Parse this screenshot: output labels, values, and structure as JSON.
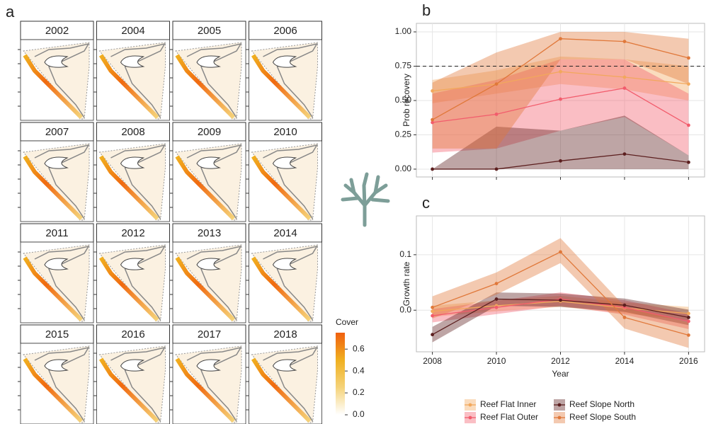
{
  "chart_data": [
    {
      "type": "map-grid",
      "panel_label": "a",
      "facets": [
        "2002",
        "2004",
        "2005",
        "2006",
        "2007",
        "2008",
        "2009",
        "2010",
        "2011",
        "2012",
        "2013",
        "2014",
        "2015",
        "2016",
        "2017",
        "2018"
      ],
      "legend_title": "Cover",
      "clim": [
        0,
        0.75
      ],
      "cticks": [
        {
          "value": 0,
          "label": "0.0"
        },
        {
          "value": 0.2,
          "label": "0.2"
        },
        {
          "value": 0.4,
          "label": "0.4"
        },
        {
          "value": 0.6,
          "label": "0.6"
        }
      ],
      "colors": [
        "#ffffff",
        "#f5d37a",
        "#f0b020",
        "#f06010"
      ]
    },
    {
      "type": "line",
      "panel_label": "b",
      "ylabel": "Prob recovery",
      "x": [
        2008,
        2010,
        2012,
        2014,
        2016
      ],
      "xlim": [
        2007.5,
        2016.5
      ],
      "ylim": [
        -0.057,
        1.062
      ],
      "yticks": [
        {
          "value": 0,
          "label": "0.00"
        },
        {
          "value": 0.25,
          "label": "0.25"
        },
        {
          "value": 0.5,
          "label": "0.50"
        },
        {
          "value": 0.75,
          "label": "0.75"
        },
        {
          "value": 1,
          "label": "1.00"
        }
      ],
      "hline": 0.75,
      "grid": true,
      "series": [
        {
          "name": "Reef Flat Inner",
          "color": "#f2a85c",
          "values": [
            0.57,
            0.62,
            0.71,
            0.67,
            0.62
          ],
          "lower": [
            0.48,
            0.55,
            0.62,
            0.58,
            0.5
          ],
          "upper": [
            0.65,
            0.72,
            0.82,
            0.8,
            0.75
          ]
        },
        {
          "name": "Reef Flat Outer",
          "color": "#f25c6c",
          "values": [
            0.34,
            0.4,
            0.51,
            0.59,
            0.32
          ],
          "lower": [
            0.12,
            0.15,
            0.28,
            0.38,
            0.1
          ],
          "upper": [
            0.55,
            0.65,
            0.8,
            0.8,
            0.55
          ]
        },
        {
          "name": "Reef Slope North",
          "color": "#5c1f1f",
          "values": [
            0,
            0,
            0.06,
            0.11,
            0.05
          ],
          "lower": [
            0,
            0,
            0,
            0,
            0
          ],
          "upper": [
            0,
            0.31,
            0.28,
            0.39,
            0.1
          ]
        },
        {
          "name": "Reef Slope South",
          "color": "#e0783a",
          "values": [
            0.36,
            0.62,
            0.95,
            0.93,
            0.81
          ],
          "lower": [
            0.15,
            0.15,
            0.8,
            0.8,
            0.62
          ],
          "upper": [
            0.63,
            0.85,
            1,
            1,
            0.95
          ]
        }
      ]
    },
    {
      "type": "line",
      "panel_label": "c",
      "ylabel": "Growth rate",
      "xlabel": "Year",
      "x": [
        2008,
        2010,
        2012,
        2014,
        2016
      ],
      "xlim": [
        2007.5,
        2016.5
      ],
      "xticks": [
        2008,
        2010,
        2012,
        2014,
        2016
      ],
      "ylim": [
        -0.075,
        0.17
      ],
      "yticks": [
        {
          "value": 0,
          "label": "0.0"
        },
        0.1
      ],
      "grid": true,
      "series": [
        {
          "color": "#f2a85c",
          "values": [
            -0.002,
            0.008,
            0.016,
            0.004,
            -0.006
          ],
          "lower": [
            -0.012,
            -0.002,
            0.006,
            -0.006,
            -0.018
          ],
          "upper": [
            0.008,
            0.018,
            0.026,
            0.014,
            0.006
          ]
        },
        {
          "color": "#f25c6c",
          "values": [
            -0.01,
            0.005,
            0.02,
            0.005,
            -0.02
          ],
          "lower": [
            -0.022,
            -0.007,
            0.008,
            -0.008,
            -0.034
          ],
          "upper": [
            0.002,
            0.017,
            0.032,
            0.018,
            -0.006
          ]
        },
        {
          "color": "#5c1f1f",
          "values": [
            -0.044,
            0.02,
            0.018,
            0.009,
            -0.013
          ],
          "lower": [
            -0.058,
            0.008,
            0.006,
            -0.003,
            -0.027
          ],
          "upper": [
            -0.03,
            0.032,
            0.03,
            0.021,
            0.001
          ]
        },
        {
          "color": "#e0783a",
          "values": [
            0.005,
            0.048,
            0.105,
            -0.013,
            -0.045
          ],
          "lower": [
            -0.015,
            0.028,
            0.085,
            -0.033,
            -0.068
          ],
          "upper": [
            0.025,
            0.068,
            0.13,
            0.007,
            -0.022
          ]
        }
      ]
    }
  ]
}
